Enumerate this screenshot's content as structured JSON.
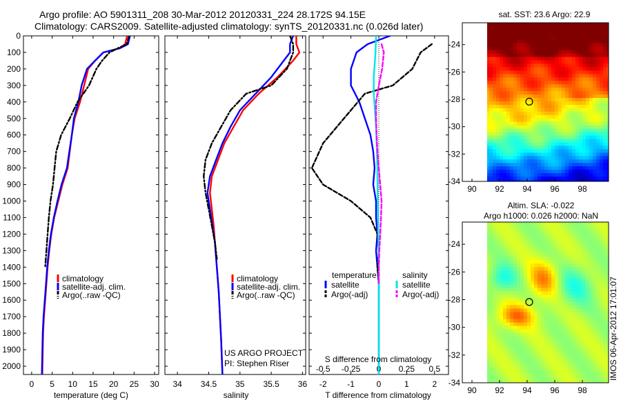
{
  "header": {
    "line1": "Argo profile: AO 5901311_208 30-Mar-2012 20120331_224 28.172S 94.15E",
    "line2": "Climatology: CARS2009. Satellite-adjusted climatology: synTS_20120331.nc (0.026d later)"
  },
  "colors": {
    "climatology": "#ff0000",
    "satellite": "#0000ff",
    "argo": "#000000",
    "satellite_salinity": "#00e5e5",
    "argo_salinity_adj": "#ff00ff"
  },
  "chart_data": [
    {
      "type": "line",
      "xlabel": "temperature (deg C)",
      "ylabel": "",
      "xlim": [
        -2,
        31
      ],
      "ylim": [
        2050,
        0
      ],
      "xticks": [
        "0",
        "5",
        "10",
        "15",
        "20",
        "25",
        "30"
      ],
      "yticks": [
        "0",
        "100",
        "200",
        "300",
        "400",
        "500",
        "600",
        "700",
        "800",
        "900",
        "1000",
        "1100",
        "1200",
        "1300",
        "1400",
        "1500",
        "1600",
        "1700",
        "1800",
        "1900",
        "2000"
      ],
      "legend": [
        "climatology",
        "satellite-adj. clim.",
        "Argo(..raw -QC)"
      ],
      "series": [
        {
          "name": "climatology",
          "style": "solid",
          "color": "#ff0000",
          "x": [
            23.3,
            22.8,
            21.5,
            17.5,
            15.5,
            13.8,
            12.8,
            11.8,
            10.5,
            9.8,
            9.3,
            8.8,
            7.5,
            6.5,
            5.5,
            4.8,
            4.3,
            3.9,
            3.6,
            3.3,
            3.0,
            2.8,
            2.6
          ],
          "y": [
            0,
            50,
            75,
            100,
            150,
            200,
            300,
            400,
            500,
            600,
            700,
            800,
            900,
            1000,
            1100,
            1200,
            1300,
            1400,
            1500,
            1600,
            1700,
            1800,
            2050
          ]
        },
        {
          "name": "satellite-adj. clim.",
          "style": "solid",
          "color": "#0000ff",
          "x": [
            24.0,
            23.5,
            21.5,
            17.5,
            15.5,
            13.5,
            12.2,
            11.4,
            10.3,
            9.8,
            9.2,
            8.6,
            7.3,
            6.3,
            5.4,
            4.7,
            4.2,
            3.8,
            3.5,
            3.2,
            2.9,
            2.7,
            2.5
          ],
          "y": [
            0,
            50,
            75,
            100,
            150,
            200,
            300,
            400,
            500,
            600,
            700,
            800,
            900,
            1000,
            1100,
            1200,
            1300,
            1400,
            1500,
            1600,
            1700,
            1800,
            2050
          ]
        },
        {
          "name": "Argo(..raw -QC)",
          "style": "dashdot",
          "color": "#000000",
          "x": [
            23.8,
            23.2,
            21.0,
            19.0,
            17.2,
            15.8,
            14.0,
            11.2,
            9.3,
            7.2,
            6.0,
            5.6,
            5.2,
            4.6,
            4.2,
            3.9,
            3.6,
            3.3
          ],
          "y": [
            0,
            50,
            75,
            100,
            150,
            200,
            300,
            400,
            500,
            600,
            700,
            800,
            900,
            1000,
            1100,
            1200,
            1300,
            1400
          ]
        }
      ]
    },
    {
      "type": "line",
      "xlabel": "salinity",
      "ylabel": "",
      "xlim": [
        33.8,
        36.05
      ],
      "ylim": [
        2050,
        0
      ],
      "xticks": [
        "34",
        "34.5",
        "35",
        "35.5",
        "36"
      ],
      "legend": [
        "climatology",
        "satellite-adj. clim.",
        "Argo(..raw -QC)"
      ],
      "annotation": [
        "US ARGO PROJECT",
        "PI: Stephen Riser"
      ],
      "series": [
        {
          "name": "climatology",
          "style": "solid",
          "color": "#ff0000",
          "x": [
            35.9,
            35.9,
            35.95,
            35.85,
            35.6,
            35.3,
            35.05,
            34.9,
            34.75,
            34.65,
            34.55,
            34.52,
            34.55,
            34.58,
            34.6,
            34.62,
            34.64,
            34.66,
            34.68,
            34.7,
            34.72
          ],
          "y": [
            0,
            50,
            100,
            150,
            250,
            350,
            450,
            550,
            650,
            750,
            850,
            950,
            1050,
            1150,
            1250,
            1350,
            1450,
            1550,
            1700,
            1850,
            2050
          ]
        },
        {
          "name": "satellite-adj. clim.",
          "style": "solid",
          "color": "#0000ff",
          "x": [
            35.85,
            35.8,
            35.8,
            35.7,
            35.5,
            35.25,
            35.0,
            34.85,
            34.72,
            34.62,
            34.52,
            34.48,
            34.52,
            34.56,
            34.6,
            34.62,
            34.64,
            34.66,
            34.68,
            34.7,
            34.72
          ],
          "y": [
            0,
            50,
            100,
            150,
            250,
            350,
            450,
            550,
            650,
            750,
            850,
            950,
            1050,
            1150,
            1250,
            1350,
            1450,
            1550,
            1700,
            1850,
            2050
          ]
        },
        {
          "name": "Argo(..raw -QC)",
          "style": "dashdot",
          "color": "#000000",
          "x": [
            35.8,
            35.85,
            35.85,
            35.75,
            35.5,
            35.1,
            34.85,
            34.7,
            34.55,
            34.45,
            34.42,
            34.45,
            34.5,
            34.55,
            34.6,
            34.63
          ],
          "y": [
            0,
            50,
            100,
            200,
            300,
            350,
            450,
            550,
            650,
            750,
            850,
            950,
            1050,
            1150,
            1250,
            1350
          ]
        }
      ]
    },
    {
      "type": "line",
      "xlabel": "T difference from climatology",
      "xlabel2": "S difference from climatology",
      "xlim": [
        -2.5,
        2.5
      ],
      "ylim": [
        2050,
        0
      ],
      "xticks": [
        "-2",
        "-1",
        "0",
        "1",
        "2"
      ],
      "xticks_top": [
        "-0.5",
        "-0.25",
        "0",
        "0.25",
        "0.5"
      ],
      "legend_titles": [
        "temperature",
        "salinity"
      ],
      "legend": [
        "satellite",
        "Argo(-adj)",
        "satellite",
        "Argo(-adj)"
      ],
      "series": [
        {
          "name": "satellite",
          "group": "temperature",
          "style": "solid",
          "color": "#0000ff",
          "x": [
            0.4,
            -0.4,
            -0.8,
            -1.0,
            -1.0,
            -0.7,
            -0.5,
            -0.3,
            -0.2,
            -0.15,
            -0.2,
            -0.1,
            -0.1,
            -0.05,
            -0.1,
            -0.05,
            0,
            0,
            0,
            0,
            0,
            0
          ],
          "y": [
            0,
            50,
            100,
            200,
            300,
            400,
            500,
            600,
            700,
            800,
            900,
            1000,
            1100,
            1200,
            1300,
            1400,
            1500,
            1600,
            1700,
            1800,
            1900,
            2050
          ]
        },
        {
          "name": "Argo(-adj)",
          "group": "temperature",
          "style": "dashed",
          "color": "#000000",
          "x": [
            1.9,
            1.5,
            1.2,
            0.5,
            -0.5,
            -1.0,
            -1.5,
            -2.0,
            -2.4,
            -2.0,
            -1.0,
            -0.3,
            -0.05,
            0.0,
            -0.05,
            0.0
          ],
          "y": [
            50,
            100,
            200,
            300,
            350,
            450,
            550,
            650,
            800,
            900,
            1000,
            1100,
            1200,
            1300,
            1400,
            1500
          ]
        },
        {
          "name": "satellite",
          "group": "salinity",
          "style": "solid",
          "color": "#00e5e5",
          "x": [
            -0.1,
            -0.12,
            -0.18,
            -0.18,
            -0.14,
            -0.1,
            -0.08,
            -0.06,
            -0.05,
            -0.04,
            -0.03,
            -0.02,
            -0.01,
            0,
            0,
            0,
            0
          ],
          "y": [
            0,
            100,
            250,
            350,
            450,
            550,
            650,
            750,
            850,
            1000,
            1100,
            1200,
            1300,
            1400,
            1500,
            1700,
            2050
          ]
        },
        {
          "name": "Argo(-adj)",
          "group": "salinity",
          "style": "dashed",
          "color": "#ff00ff",
          "x": [
            0.1,
            0.18,
            0.12,
            0.0,
            -0.1,
            -0.1,
            -0.08,
            -0.05,
            0.0,
            0.05,
            0.1,
            0.08,
            0.05,
            0.02,
            0.0,
            0.0
          ],
          "y": [
            50,
            100,
            200,
            300,
            400,
            500,
            600,
            700,
            800,
            900,
            1000,
            1100,
            1200,
            1300,
            1400,
            1500
          ]
        }
      ]
    },
    {
      "type": "heatmap",
      "title": "sat. SST: 23.6  Argo: 22.9",
      "xlim": [
        89.3,
        99.9
      ],
      "ylim": [
        -34,
        -22.4
      ],
      "xticks": [
        "90",
        "92",
        "94",
        "96",
        "98"
      ],
      "yticks": [
        "-24",
        "-26",
        "-28",
        "-30",
        "-32",
        "-34"
      ],
      "marker": {
        "lon": 94.15,
        "lat": -28.172
      }
    },
    {
      "type": "heatmap",
      "title": "Altim. SLA: -0.022",
      "subtitle": "Argo h1000: 0.026  h2000: NaN",
      "xlim": [
        89.3,
        99.9
      ],
      "ylim": [
        -34,
        -22.4
      ],
      "xticks": [
        "90",
        "92",
        "94",
        "96",
        "98"
      ],
      "yticks": [
        "-24",
        "-26",
        "-28",
        "-30",
        "-32",
        "-34"
      ],
      "marker": {
        "lon": 94.15,
        "lat": -28.172
      }
    }
  ],
  "footer": {
    "imos_stamp": "IMOS 06-Apr-2012 17:01:07"
  }
}
